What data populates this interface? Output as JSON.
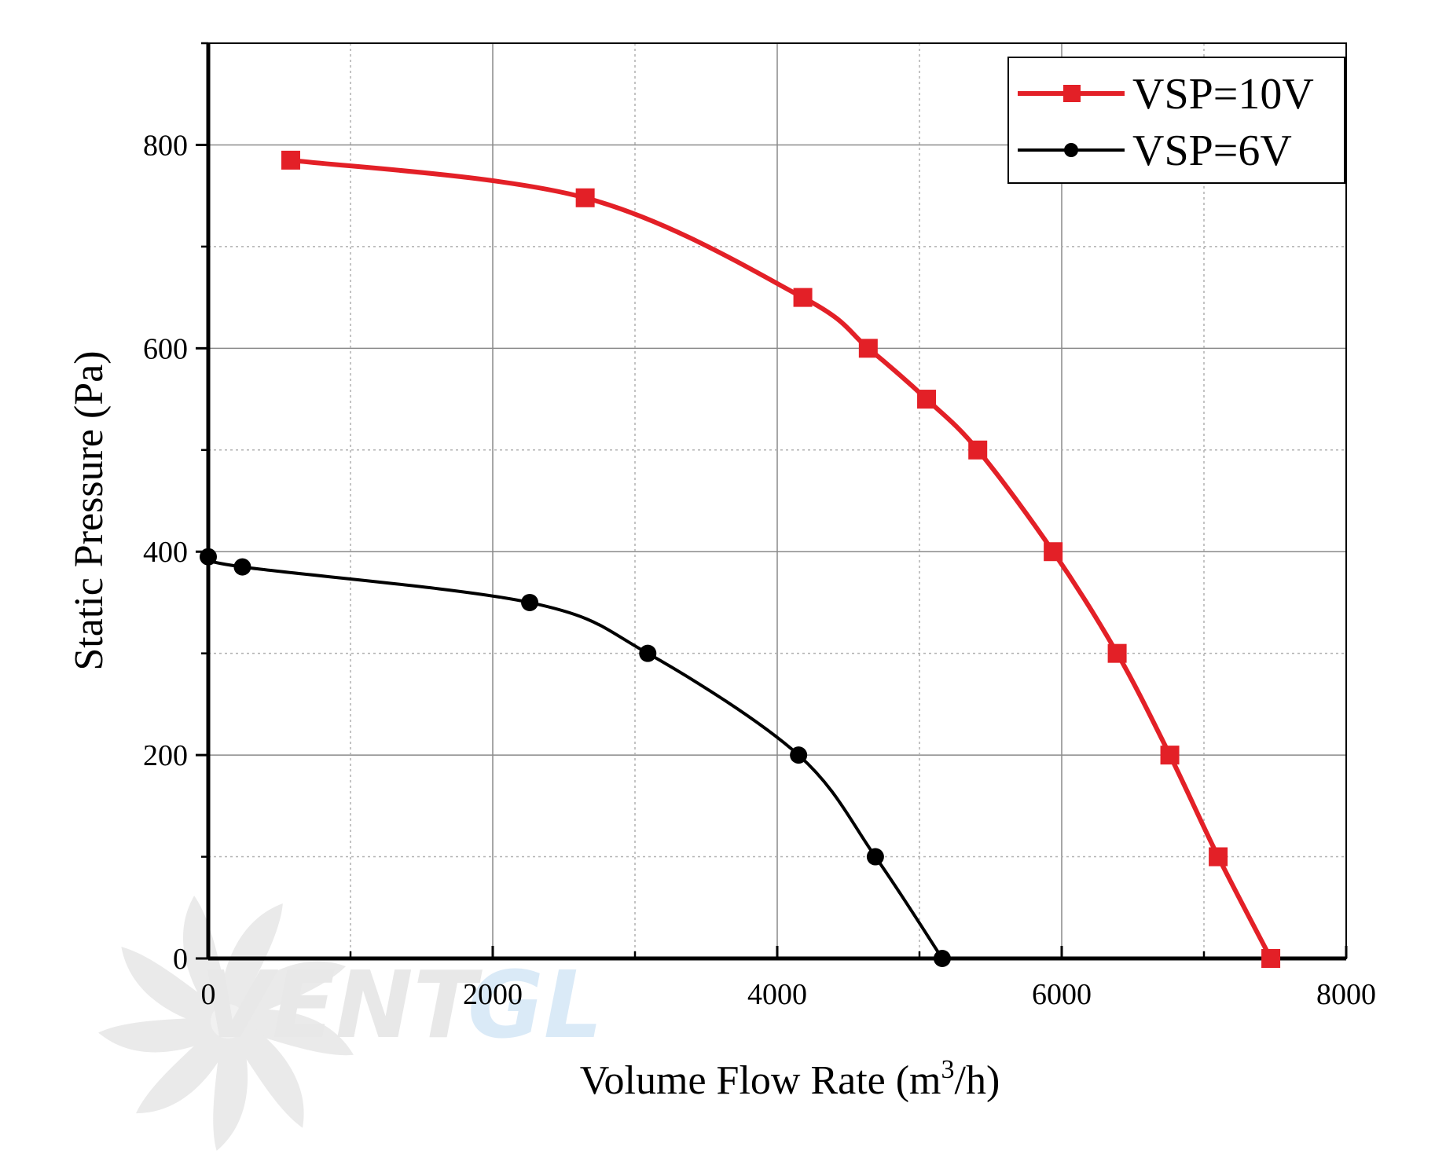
{
  "chart_data": {
    "type": "line",
    "xlabel": "Volume Flow Rate (m",
    "xlabel_sup": "3",
    "xlabel_tail": "/h)",
    "ylabel": "Static Pressure (Pa)",
    "xlim": [
      0,
      8000
    ],
    "ylim": [
      0,
      900
    ],
    "x_ticks": [
      0,
      2000,
      4000,
      6000,
      8000
    ],
    "y_ticks": [
      0,
      200,
      400,
      600,
      800
    ],
    "x_tick_labels": [
      "0",
      "2000",
      "4000",
      "6000",
      "8000"
    ],
    "y_tick_labels": [
      "0",
      "200",
      "400",
      "600",
      "800"
    ],
    "grid": true,
    "legend_position": "top-right",
    "series": [
      {
        "name": "VSP=10V",
        "color": "#e32027",
        "marker": "square",
        "x": [
          580,
          2650,
          4180,
          4640,
          5050,
          5410,
          5940,
          6390,
          6760,
          7100,
          7470
        ],
        "y": [
          785,
          748,
          650,
          600,
          550,
          500,
          400,
          300,
          200,
          100,
          0
        ]
      },
      {
        "name": "VSP=6V",
        "color": "#000000",
        "marker": "circle",
        "x": [
          0,
          240,
          2260,
          3090,
          4150,
          4690,
          5160
        ],
        "y": [
          395,
          385,
          350,
          300,
          200,
          100,
          0
        ]
      }
    ]
  },
  "watermark": {
    "text_main": "VENT",
    "text_accent": "GL",
    "main_color": "#d6d6d6",
    "accent_color": "#bcd9f2"
  }
}
